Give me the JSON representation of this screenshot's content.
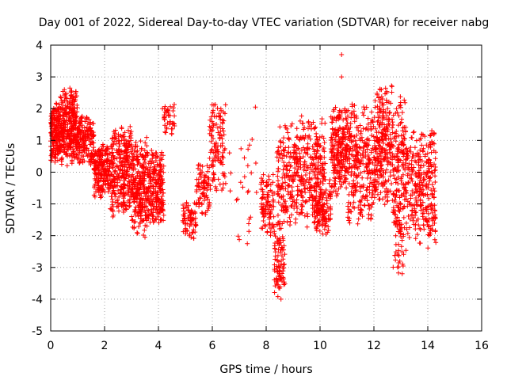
{
  "chart_data": {
    "type": "scatter",
    "title": "Day 001 of 2022, Sidereal Day-to-day VTEC variation (SDTVAR) for receiver nabg",
    "xlabel": "GPS time / hours",
    "ylabel": "SDTVAR / TECUs",
    "xlim": [
      0,
      16
    ],
    "ylim": [
      -5,
      4
    ],
    "xticks": [
      0,
      2,
      4,
      6,
      8,
      10,
      12,
      14,
      16
    ],
    "yticks": [
      -5,
      -4,
      -3,
      -2,
      -1,
      0,
      1,
      2,
      3,
      4
    ],
    "grid": true,
    "marker": "+",
    "series_color": "#ff0000",
    "clusters": [
      {
        "x": [
          0.0,
          0.35
        ],
        "y": [
          0.3,
          2.2
        ],
        "n": 180
      },
      {
        "x": [
          0.35,
          1.0
        ],
        "y": [
          0.2,
          2.7
        ],
        "n": 320
      },
      {
        "x": [
          1.0,
          1.6
        ],
        "y": [
          0.2,
          1.8
        ],
        "n": 160
      },
      {
        "x": [
          1.6,
          2.2
        ],
        "y": [
          -0.8,
          0.9
        ],
        "n": 200
      },
      {
        "x": [
          2.2,
          3.0
        ],
        "y": [
          -1.5,
          1.5
        ],
        "n": 300
      },
      {
        "x": [
          3.0,
          3.6
        ],
        "y": [
          -2.0,
          1.1
        ],
        "n": 260
      },
      {
        "x": [
          3.6,
          4.2
        ],
        "y": [
          -1.7,
          0.7
        ],
        "n": 220
      },
      {
        "x": [
          4.2,
          4.6
        ],
        "y": [
          1.2,
          2.2
        ],
        "n": 40
      },
      {
        "x": [
          4.9,
          5.4
        ],
        "y": [
          -2.2,
          -0.9
        ],
        "n": 70
      },
      {
        "x": [
          5.4,
          5.9
        ],
        "y": [
          -1.4,
          0.3
        ],
        "n": 80
      },
      {
        "x": [
          5.9,
          6.5
        ],
        "y": [
          -0.6,
          2.3
        ],
        "n": 120
      },
      {
        "x": [
          6.6,
          7.7
        ],
        "y": [
          -2.2,
          2.1
        ],
        "n": 25
      },
      {
        "x": [
          7.8,
          8.3
        ],
        "y": [
          -2.0,
          0.0
        ],
        "n": 100
      },
      {
        "x": [
          8.3,
          8.7
        ],
        "y": [
          -4.0,
          -1.5
        ],
        "n": 90
      },
      {
        "x": [
          8.4,
          9.0
        ],
        "y": [
          -1.8,
          1.6
        ],
        "n": 140
      },
      {
        "x": [
          9.0,
          10.2
        ],
        "y": [
          -1.8,
          1.8
        ],
        "n": 320
      },
      {
        "x": [
          9.8,
          10.4
        ],
        "y": [
          -2.0,
          -0.2
        ],
        "n": 110
      },
      {
        "x": [
          10.4,
          11.0
        ],
        "y": [
          -0.8,
          2.1
        ],
        "n": 220
      },
      {
        "x": [
          11.0,
          12.1
        ],
        "y": [
          -1.7,
          2.3
        ],
        "n": 320
      },
      {
        "x": [
          12.1,
          12.7
        ],
        "y": [
          -1.2,
          2.8
        ],
        "n": 220
      },
      {
        "x": [
          12.7,
          13.2
        ],
        "y": [
          -3.2,
          2.4
        ],
        "n": 210
      },
      {
        "x": [
          13.2,
          14.3
        ],
        "y": [
          -2.4,
          1.4
        ],
        "n": 300
      }
    ],
    "outliers": [
      {
        "x": 10.8,
        "y": 3.7
      },
      {
        "x": 10.8,
        "y": 3.0
      },
      {
        "x": 7.6,
        "y": 2.05
      },
      {
        "x": 4.15,
        "y": 2.0
      },
      {
        "x": 3.5,
        "y": -2.05
      },
      {
        "x": 7.3,
        "y": -2.25
      },
      {
        "x": 8.55,
        "y": -4.0
      },
      {
        "x": 13.05,
        "y": -3.2
      }
    ]
  }
}
